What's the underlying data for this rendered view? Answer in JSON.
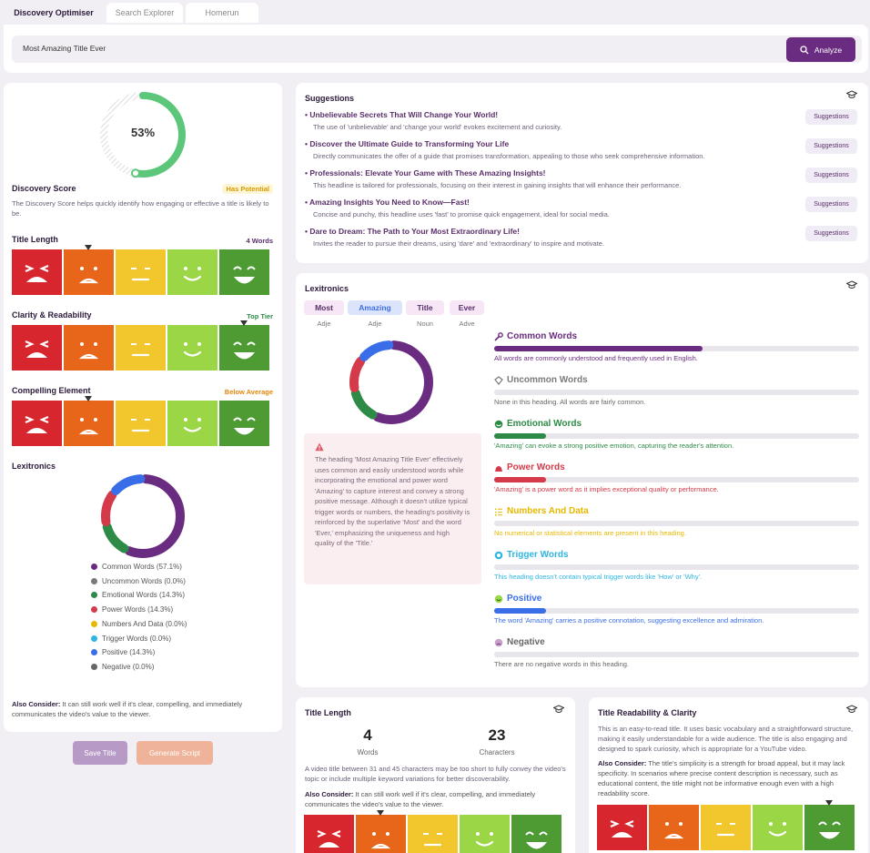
{
  "tabs": [
    "Discovery Optimiser",
    "Search Explorer",
    "Homerun"
  ],
  "search": {
    "value": "Most Amazing Title Ever",
    "button": "Analyze"
  },
  "left": {
    "score_pct": "53%",
    "score_value": 53,
    "discovery_title": "Discovery Score",
    "discovery_badge": "Has Potential",
    "discovery_desc": "The Discovery Score helps quickly identify how engaging or effective a title is likely to be.",
    "title_length": {
      "label": "Title Length",
      "value": "4 Words"
    },
    "clarity": {
      "label": "Clarity & Readability",
      "value": "Top Tier"
    },
    "compelling": {
      "label": "Compelling Element",
      "value": "Below Average"
    },
    "lexitronics": "Lexitronics",
    "legend": [
      "Common Words (57.1%)",
      "Uncommon Words (0.0%)",
      "Emotional Words (14.3%)",
      "Power Words (14.3%)",
      "Numbers And Data (0.0%)",
      "Trigger Words (0.0%)",
      "Positive (14.3%)",
      "Negative (0.0%)"
    ],
    "also_label": "Also Consider:",
    "also_text": " It can still work well if it's clear, compelling, and immediately communicates the video's value to the viewer.",
    "save": "Save Title",
    "generate": "Generate Script"
  },
  "suggestions": {
    "title": "Suggestions",
    "btn": "Suggestions",
    "items": [
      {
        "t": "Unbelievable Secrets That Will Change Your World!",
        "d": "The use of 'unbelievable' and 'change your world' evokes excitement and curiosity."
      },
      {
        "t": "Discover the Ultimate Guide to Transforming Your Life",
        "d": "Directly communicates the offer of a guide that promises transformation, appealing to those who seek comprehensive information."
      },
      {
        "t": "Professionals: Elevate Your Game with These Amazing Insights!",
        "d": "This headline is tailored for professionals, focusing on their interest in gaining insights that will enhance their performance."
      },
      {
        "t": "Amazing Insights You Need to Know—Fast!",
        "d": "Concise and punchy, this headline uses 'fast' to promise quick engagement, ideal for social media."
      },
      {
        "t": "Dare to Dream: The Path to Your Most Extraordinary Life!",
        "d": "Invites the reader to pursue their dreams, using 'dare' and 'extraordinary' to inspire and motivate."
      }
    ]
  },
  "lex": {
    "title": "Lexitronics",
    "words": [
      {
        "w": "Most",
        "p": "Adje"
      },
      {
        "w": "Amazing",
        "p": "Adje"
      },
      {
        "w": "Title",
        "p": "Noun"
      },
      {
        "w": "Ever",
        "p": "Adve"
      }
    ],
    "note": "The heading 'Most Amazing Title Ever' effectively uses common and easily understood words while incorporating the emotional and power word 'Amazing' to capture interest and convey a strong positive message. Although it doesn't utilize typical trigger words or numbers, the heading's positivity is reinforced by the superlative 'Most' and the word 'Ever,' emphasizing the uniqueness and high quality of the 'Title.'",
    "cats": [
      {
        "n": "Common Words",
        "d": "All words are commonly understood and frequently used in English.",
        "c": "#6a2c80",
        "f": 57.1
      },
      {
        "n": "Uncommon Words",
        "d": "None in this heading. All words are fairly common.",
        "c": "#7a7a7a",
        "f": 0
      },
      {
        "n": "Emotional Words",
        "d": "'Amazing' can evoke a strong positive emotion, capturing the reader's attention.",
        "c": "#2e8b47",
        "f": 14.3
      },
      {
        "n": "Power Words",
        "d": "'Amazing' is a power word as it implies exceptional quality or performance.",
        "c": "#d43a4a",
        "f": 14.3
      },
      {
        "n": "Numbers And Data",
        "d": "No numerical or statistical elements are present in this heading.",
        "c": "#e6b800",
        "f": 0
      },
      {
        "n": "Trigger Words",
        "d": "This heading doesn't contain typical trigger words like 'How' or 'Why'.",
        "c": "#2fb6e0",
        "f": 0
      },
      {
        "n": "Positive",
        "d": "The word 'Amazing' carries a positive connotation, suggesting excellence and admiration.",
        "c": "#3a6ee8",
        "f": 14.3
      },
      {
        "n": "Negative",
        "d": "There are no negative words in this heading.",
        "c": "#666666",
        "f": 0
      }
    ]
  },
  "tl": {
    "title": "Title Length",
    "words": "4",
    "words_label": "Words",
    "chars": "23",
    "chars_label": "Characters",
    "desc": "A video title between 31 and 45 characters may be too short to fully convey the video's topic or include multiple keyword variations for better discoverability.",
    "also_label": "Also Consider:",
    "also_text": " It can still work well if it's clear, compelling, and immediately communicates the video's value to the viewer."
  },
  "tr": {
    "title": "Title Readability & Clarity",
    "desc": "This is an easy-to-read title. It uses basic vocabulary and a straightforward structure, making it easily understandable for a wide audience. The title is also engaging and designed to spark curiosity, which is appropriate for a YouTube video.",
    "also_label": "Also Consider:",
    "also_text": " The title's simplicity is a strength for broad appeal, but it may lack specificity. In scenarios where precise content description is necessary, such as educational content, the title might not be informative enough even with a high readability score."
  }
}
